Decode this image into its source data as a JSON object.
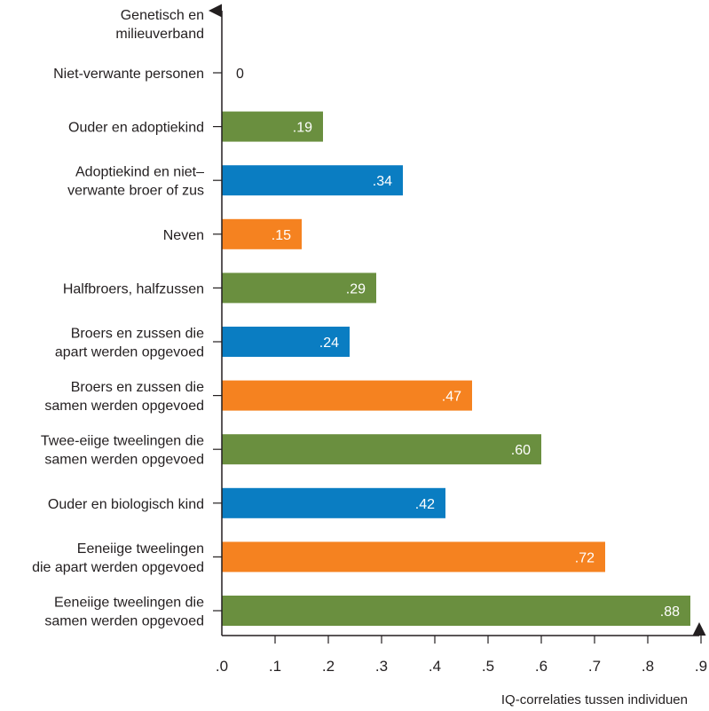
{
  "chart_data": {
    "type": "bar",
    "orientation": "horizontal",
    "y_axis_title": [
      "Genetisch en",
      "milieuverband"
    ],
    "xlabel": "IQ-correlaties tussen individuen",
    "xlim": [
      0,
      0.9
    ],
    "xticks": [
      {
        "value": 0.0,
        "label": ".0"
      },
      {
        "value": 0.1,
        "label": ".1"
      },
      {
        "value": 0.2,
        "label": ".2"
      },
      {
        "value": 0.3,
        "label": ".3"
      },
      {
        "value": 0.4,
        "label": ".4"
      },
      {
        "value": 0.5,
        "label": ".5"
      },
      {
        "value": 0.6,
        "label": ".6"
      },
      {
        "value": 0.7,
        "label": ".7"
      },
      {
        "value": 0.8,
        "label": ".8"
      },
      {
        "value": 0.9,
        "label": ".9"
      }
    ],
    "grid": false,
    "colors": {
      "green": "#6a8f3f",
      "blue": "#0a7dc2",
      "orange": "#f58220"
    },
    "categories": [
      {
        "label": [
          "Niet-verwante personen"
        ],
        "value": 0.0,
        "value_label": "0",
        "color": "none"
      },
      {
        "label": [
          "Ouder en adoptiekind"
        ],
        "value": 0.19,
        "value_label": ".19",
        "color": "green"
      },
      {
        "label": [
          "Adoptiekind en niet–",
          "verwante broer of zus"
        ],
        "value": 0.34,
        "value_label": ".34",
        "color": "blue"
      },
      {
        "label": [
          "Neven"
        ],
        "value": 0.15,
        "value_label": ".15",
        "color": "orange"
      },
      {
        "label": [
          "Halfbroers, halfzussen"
        ],
        "value": 0.29,
        "value_label": ".29",
        "color": "green"
      },
      {
        "label": [
          "Broers en zussen die",
          "apart werden opgevoed"
        ],
        "value": 0.24,
        "value_label": ".24",
        "color": "blue"
      },
      {
        "label": [
          "Broers en zussen die",
          "samen werden opgevoed"
        ],
        "value": 0.47,
        "value_label": ".47",
        "color": "orange"
      },
      {
        "label": [
          "Twee-eiige tweelingen die",
          "samen werden opgevoed"
        ],
        "value": 0.6,
        "value_label": ".60",
        "color": "green"
      },
      {
        "label": [
          "Ouder en biologisch kind"
        ],
        "value": 0.42,
        "value_label": ".42",
        "color": "blue"
      },
      {
        "label": [
          "Eeneiige tweelingen",
          "die apart werden opgevoed"
        ],
        "value": 0.72,
        "value_label": ".72",
        "color": "orange"
      },
      {
        "label": [
          "Eeneiige tweelingen die",
          "samen werden opgevoed"
        ],
        "value": 0.88,
        "value_label": ".88",
        "color": "green"
      }
    ]
  }
}
